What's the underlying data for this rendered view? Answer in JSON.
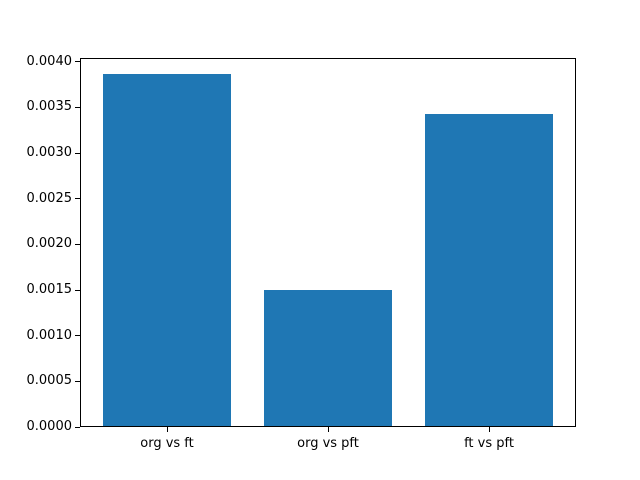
{
  "chart_data": {
    "type": "bar",
    "categories": [
      "org vs ft",
      "org vs pft",
      "ft vs pft"
    ],
    "values": [
      0.00387,
      0.0015,
      0.00343
    ],
    "title": "",
    "xlabel": "",
    "ylabel": "",
    "ylim": [
      0,
      0.00404
    ],
    "xlim": [
      -0.54,
      2.54
    ],
    "ytick_values": [
      0.0,
      0.0005,
      0.001,
      0.0015,
      0.002,
      0.0025,
      0.003,
      0.0035,
      0.004
    ],
    "ytick_labels": [
      "0.0000",
      "0.0005",
      "0.0010",
      "0.0015",
      "0.0020",
      "0.0025",
      "0.0030",
      "0.0035",
      "0.0040"
    ],
    "bar_width_fraction": 0.8,
    "bar_color": "#1f77b4",
    "axis_color": "#000000",
    "text_color": "#000000",
    "background_color": "#ffffff",
    "grid": false,
    "legend": false
  }
}
